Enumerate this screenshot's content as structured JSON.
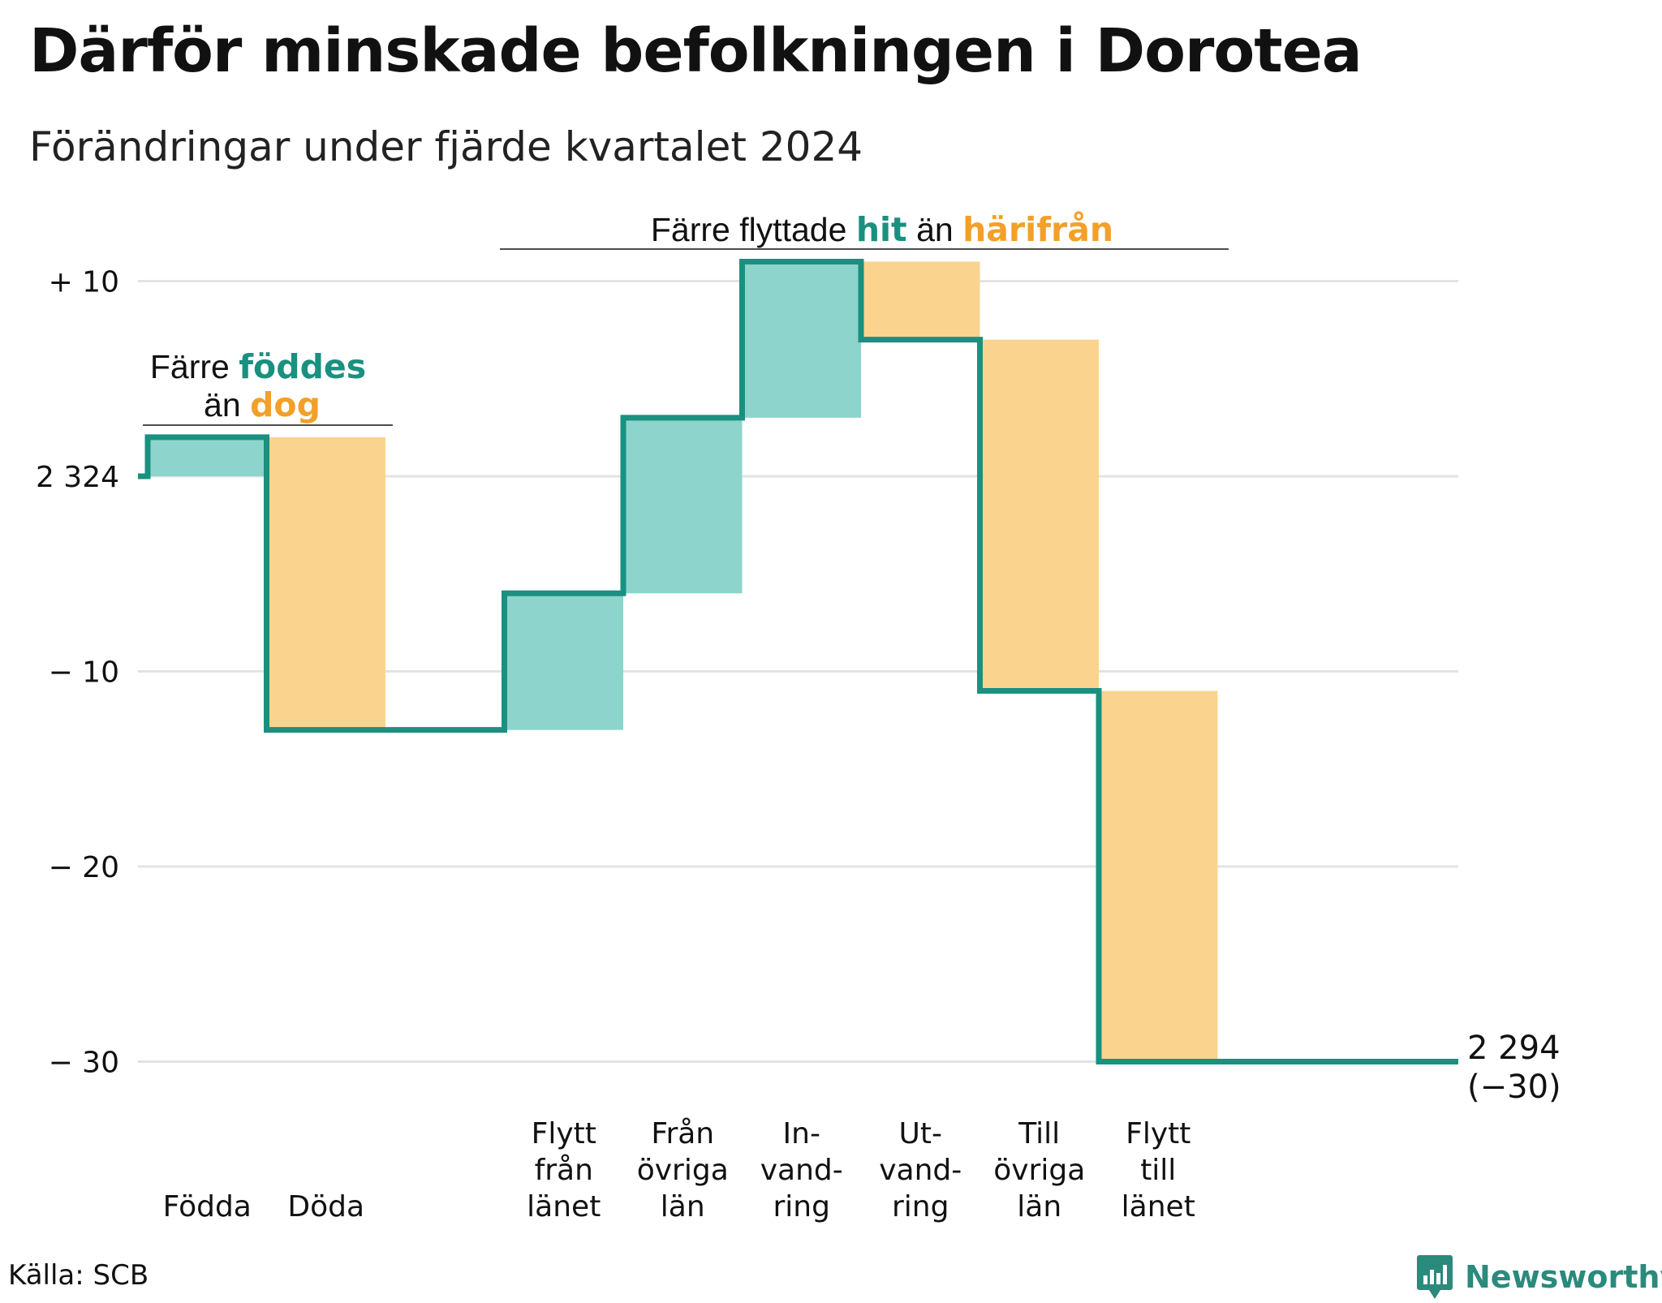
{
  "title": "Därför minskade befolkningen i Dorotea",
  "subtitle": "Förändringar under fjärde kvartalet 2024",
  "source": "Källa: SCB",
  "brand": "Newsworthy",
  "colors": {
    "increase": "#8dd4cc",
    "decrease": "#fad48e",
    "line": "#1a9080",
    "accent_teal": "#1a9080",
    "accent_orange": "#f2a02a",
    "grid": "#e3e3e3"
  },
  "annotations": {
    "births": {
      "prefix": "Färre",
      "highlight": "föddes",
      "line2_prefix": "än",
      "line2_highlight": "dog"
    },
    "migration": {
      "prefix": "Färre flyttade",
      "highlight1": "hit",
      "middle": "än",
      "highlight2": "härifrån"
    }
  },
  "end_label": {
    "value": "2 294",
    "change": "(−30)"
  },
  "chart_data": {
    "type": "waterfall",
    "title": "Därför minskade befolkningen i Dorotea",
    "subtitle": "Förändringar under fjärde kvartalet 2024",
    "start_value": 2324,
    "end_value": 2294,
    "total_change": -30,
    "ylim": [
      -32,
      12
    ],
    "yticks": [
      {
        "value": 10,
        "label": "+ 10"
      },
      {
        "value": 0,
        "label": "2 324"
      },
      {
        "value": -10,
        "label": "− 10"
      },
      {
        "value": -20,
        "label": "− 20"
      },
      {
        "value": -30,
        "label": "− 30"
      }
    ],
    "grid": true,
    "steps": [
      {
        "label": [
          "Födda"
        ],
        "change": 2,
        "kind": "increase"
      },
      {
        "label": [
          "Döda"
        ],
        "change": -15,
        "kind": "decrease"
      },
      {
        "label": [],
        "change": 0,
        "kind": "gap"
      },
      {
        "label": [
          "Flytt",
          "från",
          "länet"
        ],
        "change": 7,
        "kind": "increase"
      },
      {
        "label": [
          "Från",
          "övriga",
          "län"
        ],
        "change": 9,
        "kind": "increase"
      },
      {
        "label": [
          "In-",
          "vand-",
          "ring"
        ],
        "change": 8,
        "kind": "increase"
      },
      {
        "label": [
          "Ut-",
          "vand-",
          "ring"
        ],
        "change": -4,
        "kind": "decrease"
      },
      {
        "label": [
          "Till",
          "övriga",
          "län"
        ],
        "change": -18,
        "kind": "decrease"
      },
      {
        "label": [
          "Flytt",
          "till",
          "länet"
        ],
        "change": -19,
        "kind": "decrease"
      }
    ]
  }
}
